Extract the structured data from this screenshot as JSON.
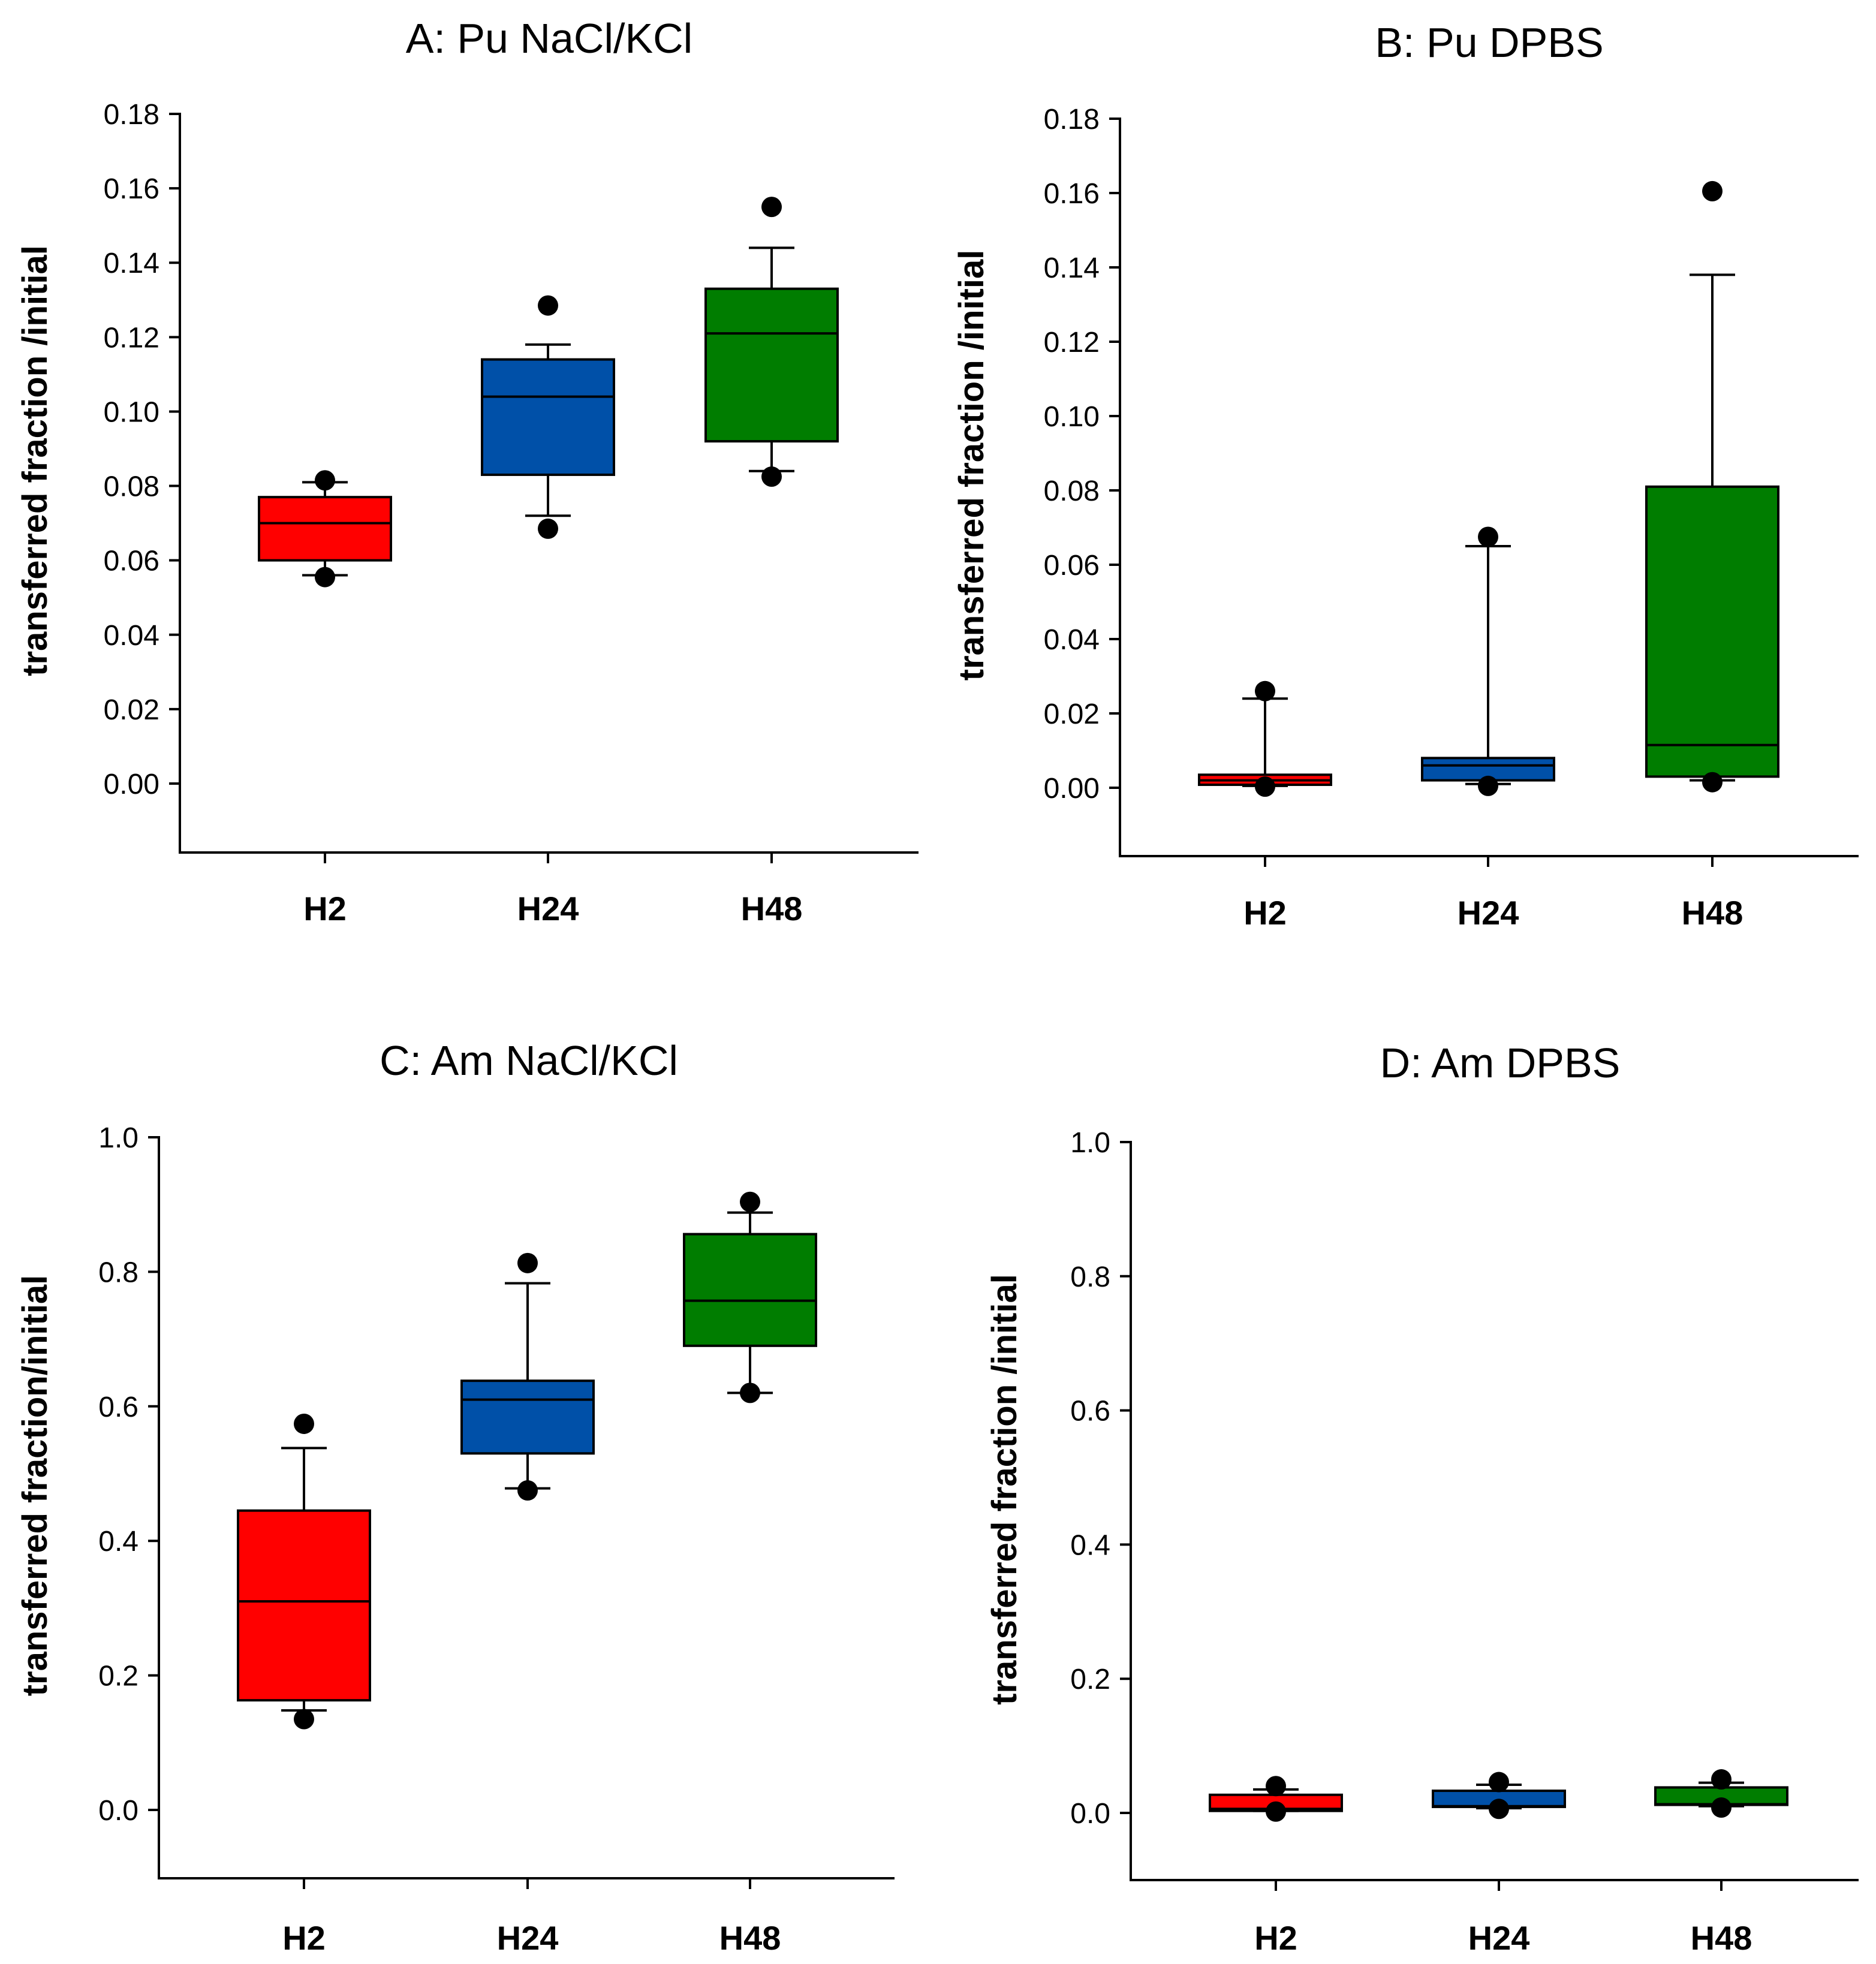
{
  "chart_data": [
    {
      "id": "A",
      "type": "box",
      "title": "A: Pu NaCl/KCl",
      "xlabel": "",
      "ylabel": "transferred fraction /initial",
      "ylim": [
        -0.018,
        0.18
      ],
      "yticks": [
        0.0,
        0.02,
        0.04,
        0.06,
        0.08,
        0.1,
        0.12,
        0.14,
        0.16,
        0.18
      ],
      "ytick_labels": [
        "0.00",
        "0.02",
        "0.04",
        "0.06",
        "0.08",
        "0.10",
        "0.12",
        "0.14",
        "0.16",
        "0.18"
      ],
      "categories": [
        "H2",
        "H24",
        "H48"
      ],
      "colors": [
        "#ff0000",
        "#0050a8",
        "#007d00"
      ],
      "boxes": [
        {
          "q1": 0.06,
          "median": 0.07,
          "q3": 0.077,
          "whisker_low": 0.056,
          "whisker_high": 0.081,
          "outliers": [
            0.0555,
            0.0815
          ]
        },
        {
          "q1": 0.083,
          "median": 0.104,
          "q3": 0.114,
          "whisker_low": 0.072,
          "whisker_high": 0.118,
          "outliers": [
            0.0685,
            0.1285
          ]
        },
        {
          "q1": 0.092,
          "median": 0.121,
          "q3": 0.133,
          "whisker_low": 0.084,
          "whisker_high": 0.144,
          "outliers": [
            0.0825,
            0.155
          ]
        }
      ]
    },
    {
      "id": "B",
      "type": "box",
      "title": "B: Pu DPBS",
      "xlabel": "",
      "ylabel": "transferred fraction /initial",
      "ylim": [
        -0.018,
        0.18
      ],
      "yticks": [
        0.0,
        0.02,
        0.04,
        0.06,
        0.08,
        0.1,
        0.12,
        0.14,
        0.16,
        0.18
      ],
      "ytick_labels": [
        "0.00",
        "0.02",
        "0.04",
        "0.06",
        "0.08",
        "0.10",
        "0.12",
        "0.14",
        "0.16",
        "0.18"
      ],
      "categories": [
        "H2",
        "H24",
        "H48"
      ],
      "colors": [
        "#ff0000",
        "#0050a8",
        "#007d00"
      ],
      "boxes": [
        {
          "q1": 0.0008,
          "median": 0.002,
          "q3": 0.0035,
          "whisker_low": 0.0005,
          "whisker_high": 0.024,
          "outliers": [
            0.0003,
            0.026
          ]
        },
        {
          "q1": 0.002,
          "median": 0.006,
          "q3": 0.008,
          "whisker_low": 0.001,
          "whisker_high": 0.065,
          "outliers": [
            0.0005,
            0.0675
          ]
        },
        {
          "q1": 0.003,
          "median": 0.0115,
          "q3": 0.081,
          "whisker_low": 0.002,
          "whisker_high": 0.138,
          "outliers": [
            0.0015,
            0.1605
          ]
        }
      ]
    },
    {
      "id": "C",
      "type": "box",
      "title": "C: Am NaCl/KCl",
      "xlabel": "",
      "ylabel": "transferred fraction/initial",
      "ylim": [
        -0.1,
        1.0
      ],
      "yticks": [
        0.0,
        0.2,
        0.4,
        0.6,
        0.8,
        1.0
      ],
      "ytick_labels": [
        "0.0",
        "0.2",
        "0.4",
        "0.6",
        "0.8",
        "1.0"
      ],
      "categories": [
        "H2",
        "H24",
        "H48"
      ],
      "colors": [
        "#ff0000",
        "#0050a8",
        "#007d00"
      ],
      "boxes": [
        {
          "q1": 0.163,
          "median": 0.31,
          "q3": 0.445,
          "whisker_low": 0.148,
          "whisker_high": 0.538,
          "outliers": [
            0.135,
            0.574
          ]
        },
        {
          "q1": 0.53,
          "median": 0.61,
          "q3": 0.638,
          "whisker_low": 0.478,
          "whisker_high": 0.783,
          "outliers": [
            0.475,
            0.813
          ]
        },
        {
          "q1": 0.69,
          "median": 0.757,
          "q3": 0.856,
          "whisker_low": 0.62,
          "whisker_high": 0.888,
          "outliers": [
            0.62,
            0.904
          ]
        }
      ]
    },
    {
      "id": "D",
      "type": "box",
      "title": "D: Am DPBS",
      "xlabel": "",
      "ylabel": "transferred fraction /initial",
      "ylim": [
        -0.1,
        1.0
      ],
      "yticks": [
        0.0,
        0.2,
        0.4,
        0.6,
        0.8,
        1.0
      ],
      "ytick_labels": [
        "0.0",
        "0.2",
        "0.4",
        "0.6",
        "0.8",
        "1.0"
      ],
      "categories": [
        "H2",
        "H24",
        "H48"
      ],
      "colors": [
        "#ff0000",
        "#0050a8",
        "#007d00"
      ],
      "boxes": [
        {
          "q1": 0.003,
          "median": 0.006,
          "q3": 0.027,
          "whisker_low": 0.003,
          "whisker_high": 0.035,
          "outliers": [
            0.002,
            0.04
          ]
        },
        {
          "q1": 0.009,
          "median": 0.01,
          "q3": 0.033,
          "whisker_low": 0.007,
          "whisker_high": 0.042,
          "outliers": [
            0.006,
            0.046
          ]
        },
        {
          "q1": 0.012,
          "median": 0.013,
          "q3": 0.038,
          "whisker_low": 0.01,
          "whisker_high": 0.045,
          "outliers": [
            0.008,
            0.05
          ]
        }
      ]
    }
  ]
}
